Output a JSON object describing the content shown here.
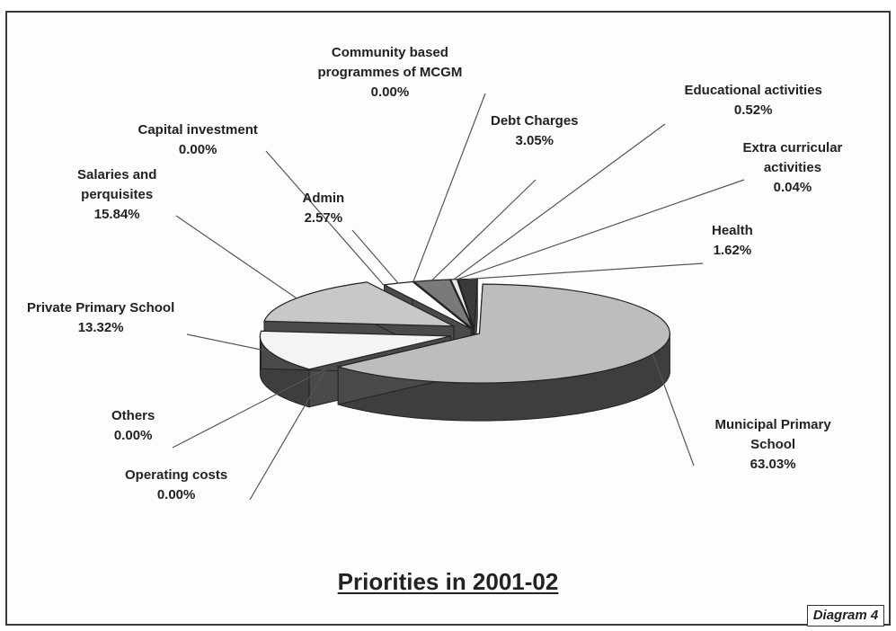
{
  "chart_data": {
    "type": "pie",
    "title": "Priorities in 2001-02",
    "slices": [
      {
        "name": "Educational activities",
        "value": 0.52,
        "value_label": "0.52%"
      },
      {
        "name": "Extra curricular\nactivities",
        "value": 0.04,
        "value_label": "0.04%"
      },
      {
        "name": "Health",
        "value": 1.62,
        "value_label": "1.62%"
      },
      {
        "name": "Municipal Primary\nSchool",
        "value": 63.03,
        "value_label": "63.03%"
      },
      {
        "name": "Operating costs",
        "value": 0.0,
        "value_label": "0.00%"
      },
      {
        "name": "Others",
        "value": 0.0,
        "value_label": "0.00%"
      },
      {
        "name": "Private Primary School",
        "value": 13.32,
        "value_label": "13.32%"
      },
      {
        "name": "Salaries and\nperquisites",
        "value": 15.84,
        "value_label": "15.84%"
      },
      {
        "name": "Capital investment",
        "value": 0.0,
        "value_label": "0.00%"
      },
      {
        "name": "Admin",
        "value": 2.57,
        "value_label": "2.57%"
      },
      {
        "name": "Community based\nprogrammes of MCGM",
        "value": 0.0,
        "value_label": "0.00%"
      },
      {
        "name": "Debt Charges",
        "value": 3.05,
        "value_label": "3.05%"
      }
    ],
    "colors": {
      "Municipal Primary\nSchool": "#bdbdbd",
      "Salaries and\nperquisites": "#c8c8c8",
      "Private Primary School": "#f4f4f4",
      "Admin": "#ffffff",
      "Debt Charges": "#7a7a7a",
      "Educational activities": "#e8e8e8",
      "Health": "#3a3a3a",
      "side": "#3e3e3e",
      "leader": "#555555"
    },
    "exploded": true,
    "three_d": true
  },
  "diagram_tag": "Diagram 4"
}
